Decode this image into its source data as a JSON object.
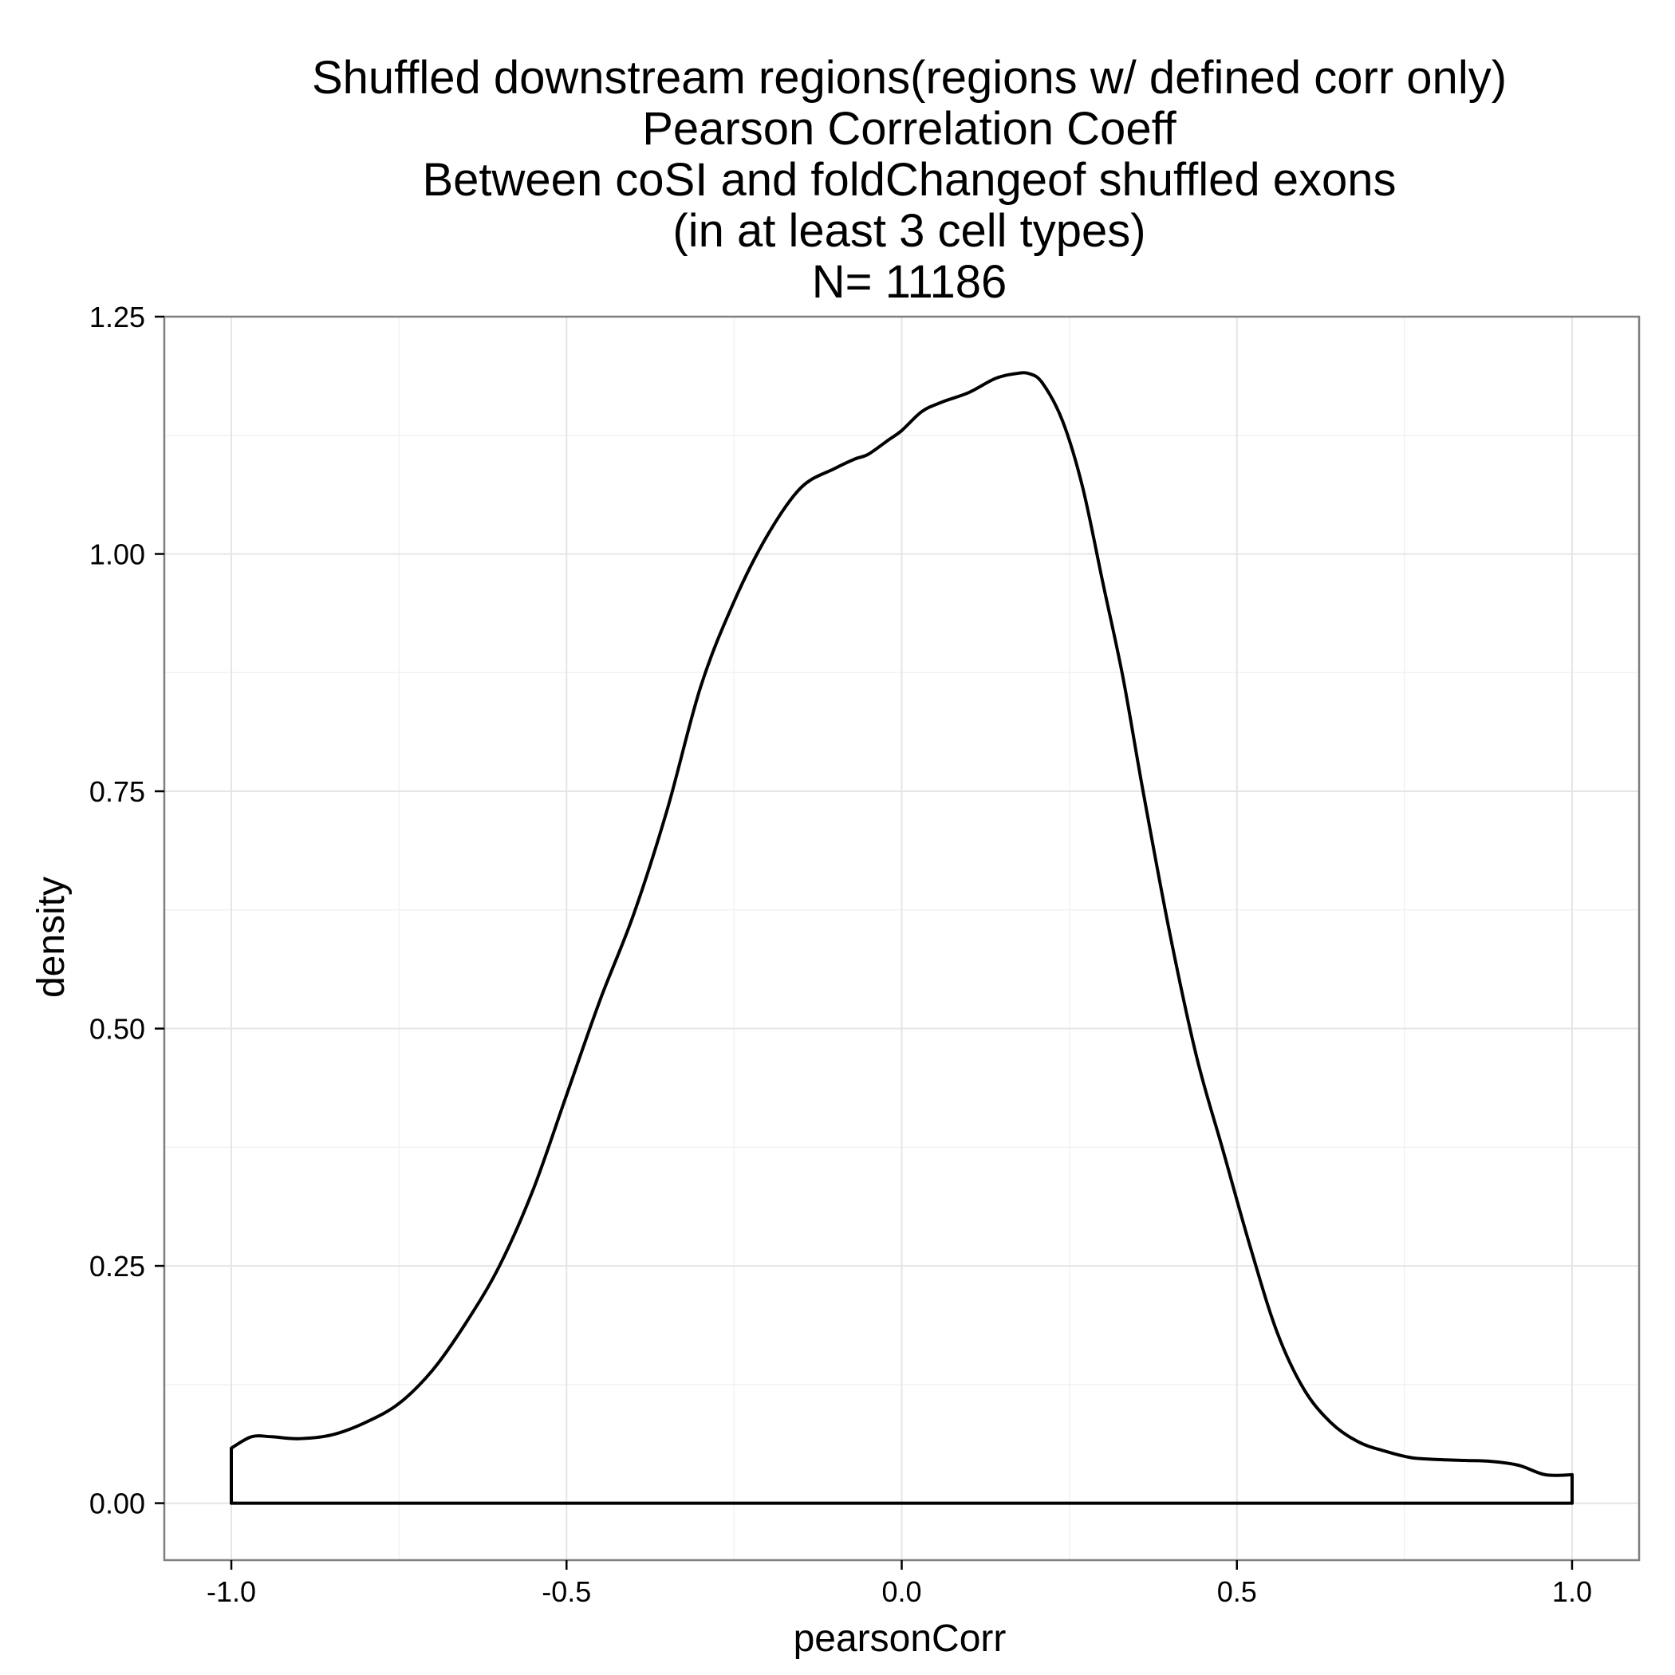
{
  "chart_data": {
    "type": "line",
    "title_lines": [
      "Shuffled downstream regions(regions w/ defined corr only)",
      "Pearson Correlation Coeff",
      "Between coSI and foldChangeof shuffled exons",
      "(in at least 3 cell types)",
      "N= 11186"
    ],
    "xlabel": "pearsonCorr",
    "ylabel": "density",
    "xlim": [
      -1.1,
      1.1
    ],
    "ylim": [
      -0.06,
      1.25
    ],
    "x_ticks": [
      -1.0,
      -0.5,
      0.0,
      0.5,
      1.0
    ],
    "x_tick_labels": [
      "-1.0",
      "-0.5",
      "0.0",
      "0.5",
      "1.0"
    ],
    "y_ticks": [
      0.0,
      0.25,
      0.5,
      0.75,
      1.0,
      1.25
    ],
    "y_tick_labels": [
      "0.00",
      "0.25",
      "0.50",
      "0.75",
      "1.00",
      "1.25"
    ],
    "grid": true,
    "series": [
      {
        "x": [
          -1.0,
          -0.97,
          -0.94,
          -0.9,
          -0.85,
          -0.8,
          -0.75,
          -0.7,
          -0.65,
          -0.6,
          -0.55,
          -0.5,
          -0.45,
          -0.4,
          -0.35,
          -0.3,
          -0.25,
          -0.2,
          -0.15,
          -0.1,
          -0.07,
          -0.05,
          -0.02,
          0.0,
          0.03,
          0.06,
          0.1,
          0.14,
          0.17,
          0.19,
          0.21,
          0.24,
          0.27,
          0.3,
          0.33,
          0.36,
          0.4,
          0.44,
          0.48,
          0.52,
          0.56,
          0.6,
          0.64,
          0.68,
          0.72,
          0.76,
          0.8,
          0.84,
          0.88,
          0.92,
          0.96,
          1.0
        ],
        "y": [
          0.058,
          0.07,
          0.07,
          0.068,
          0.072,
          0.085,
          0.105,
          0.14,
          0.19,
          0.25,
          0.33,
          0.43,
          0.53,
          0.62,
          0.73,
          0.86,
          0.95,
          1.02,
          1.07,
          1.09,
          1.1,
          1.105,
          1.12,
          1.13,
          1.15,
          1.16,
          1.17,
          1.185,
          1.19,
          1.19,
          1.18,
          1.14,
          1.07,
          0.97,
          0.87,
          0.75,
          0.6,
          0.47,
          0.37,
          0.27,
          0.18,
          0.12,
          0.085,
          0.065,
          0.055,
          0.048,
          0.046,
          0.045,
          0.044,
          0.04,
          0.03,
          0.03
        ]
      }
    ]
  }
}
